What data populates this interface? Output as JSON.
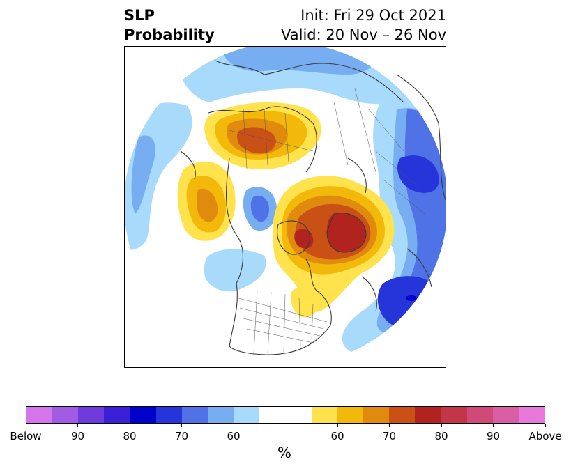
{
  "title": {
    "left_line1": "SLP",
    "left_line2": "Probability",
    "right_line1": "Init: Fri 29 Oct 2021",
    "right_line2": "Valid: 20 Nov – 26 Nov"
  },
  "colorbar": {
    "colors": [
      "#d575eb",
      "#a25be3",
      "#6f3bdc",
      "#3b1fd6",
      "#0000cc",
      "#2535d9",
      "#4f73e6",
      "#77aef2",
      "#a8dafc",
      "#ffffff",
      "#ffffff",
      "#ffe24c",
      "#f2b90a",
      "#e08a0e",
      "#c95116",
      "#b1231f",
      "#c33548",
      "#cf4a78",
      "#da5ea4",
      "#e878db"
    ],
    "labels": [
      "Below",
      "90",
      "80",
      "70",
      "60",
      "60",
      "70",
      "80",
      "90",
      "Above"
    ],
    "unit": "%"
  },
  "map": {
    "projection": "north-polar-stereographic",
    "colors": {
      "blue_light": "#a8dafc",
      "blue_mid": "#77aef2",
      "blue_strong": "#4f73e6",
      "blue_deep": "#2535d9",
      "blue_max": "#0000cc",
      "yellow": "#ffe24c",
      "gold": "#f2b90a",
      "orange": "#e08a0e",
      "rust": "#c95116",
      "red": "#b1231f"
    }
  }
}
